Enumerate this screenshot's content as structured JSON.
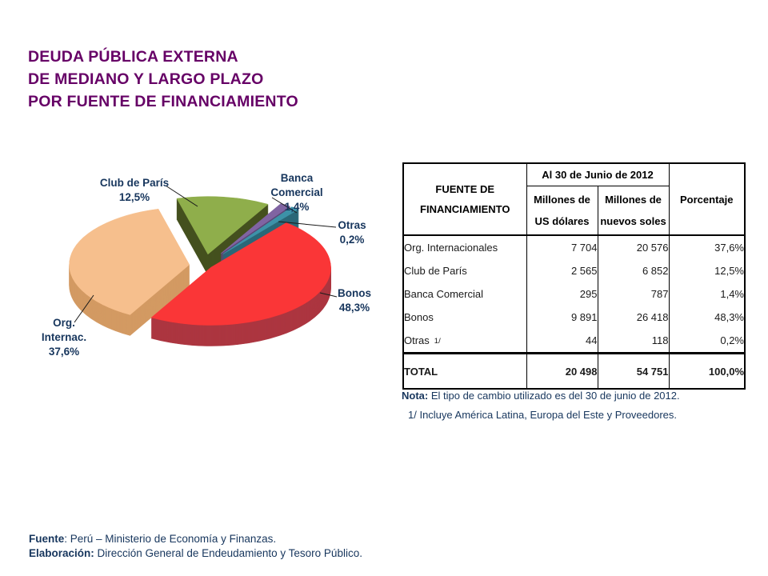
{
  "slide": {
    "title_lines": [
      "DEUDA PÚBLICA EXTERNA",
      "DE MEDIANO Y LARGO PLAZO",
      "POR FUENTE DE FINANCIAMIENTO"
    ],
    "title_color": "#660066"
  },
  "chart_data": {
    "type": "pie",
    "style": "3d-exploded",
    "legend_position": "none",
    "labels_color": "#17365D",
    "slices": [
      {
        "label": "Org. Internac.",
        "value": 37.6,
        "display": "37,6%",
        "color": "#F6BF8D",
        "side_color": "#D39A63"
      },
      {
        "label": "Club de París",
        "value": 12.5,
        "display": "12,5%",
        "color": "#8FAE4B",
        "side_color": "#45511F"
      },
      {
        "label": "Banca Comercial",
        "value": 1.4,
        "display": "1,4%",
        "color": "#8064A2",
        "side_color": "#5C4776"
      },
      {
        "label": "Bonos",
        "value": 48.3,
        "display": "48,3%",
        "color": "#FA3637",
        "side_color": "#AC3640"
      },
      {
        "label": "Otras",
        "value": 0.2,
        "display": "0,2%",
        "color": "#3D92A8",
        "side_color": "#2A6878"
      }
    ]
  },
  "pie_labels": {
    "club": [
      "Club de París",
      "12,5%"
    ],
    "banca": [
      "Banca",
      "Comercial",
      "1,4%"
    ],
    "otras": [
      "Otras",
      "0,2%"
    ],
    "bonos": [
      "Bonos",
      "48,3%"
    ],
    "org": [
      "Org.",
      "Internac.",
      "37,6%"
    ]
  },
  "table": {
    "header": {
      "col1": "FUENTE DE\nFINANCIAMIENTO",
      "span": "Al 30 de Junio de 2012",
      "col2": "Millones de\nUS dólares",
      "col3": "Millones de\nnuevos soles",
      "col4": "Porcentaje"
    },
    "rows": [
      {
        "source": "Org. Internacionales",
        "usd": "7 704",
        "pen": "20 576",
        "pct": "37,6%"
      },
      {
        "source": "Club de París",
        "usd": "2 565",
        "pen": "6 852",
        "pct": "12,5%"
      },
      {
        "source": "Banca Comercial",
        "usd": "295",
        "pen": "787",
        "pct": "1,4%"
      },
      {
        "source": "Bonos",
        "usd": "9 891",
        "pen": "26 418",
        "pct": "48,3%"
      },
      {
        "source": "Otras",
        "source_note": "1/",
        "usd": "44",
        "pen": "118",
        "pct": "0,2%"
      }
    ],
    "total": {
      "label": "TOTAL",
      "usd": "20 498",
      "pen": "54 751",
      "pct": "100,0%"
    }
  },
  "notes": {
    "nota_label": "Nota:",
    "nota_text": " El tipo de cambio utilizado es del 30 de junio de 2012.",
    "footnote": "1/ Incluye América Latina, Europa del Este y Proveedores."
  },
  "footer": {
    "fuente_label": "Fuente",
    "fuente_text": ": Perú – Ministerio de Economía y Finanzas.",
    "elaboracion_label": "Elaboración:",
    "elaboracion_text": " Dirección General de Endeudamiento y Tesoro Público."
  }
}
